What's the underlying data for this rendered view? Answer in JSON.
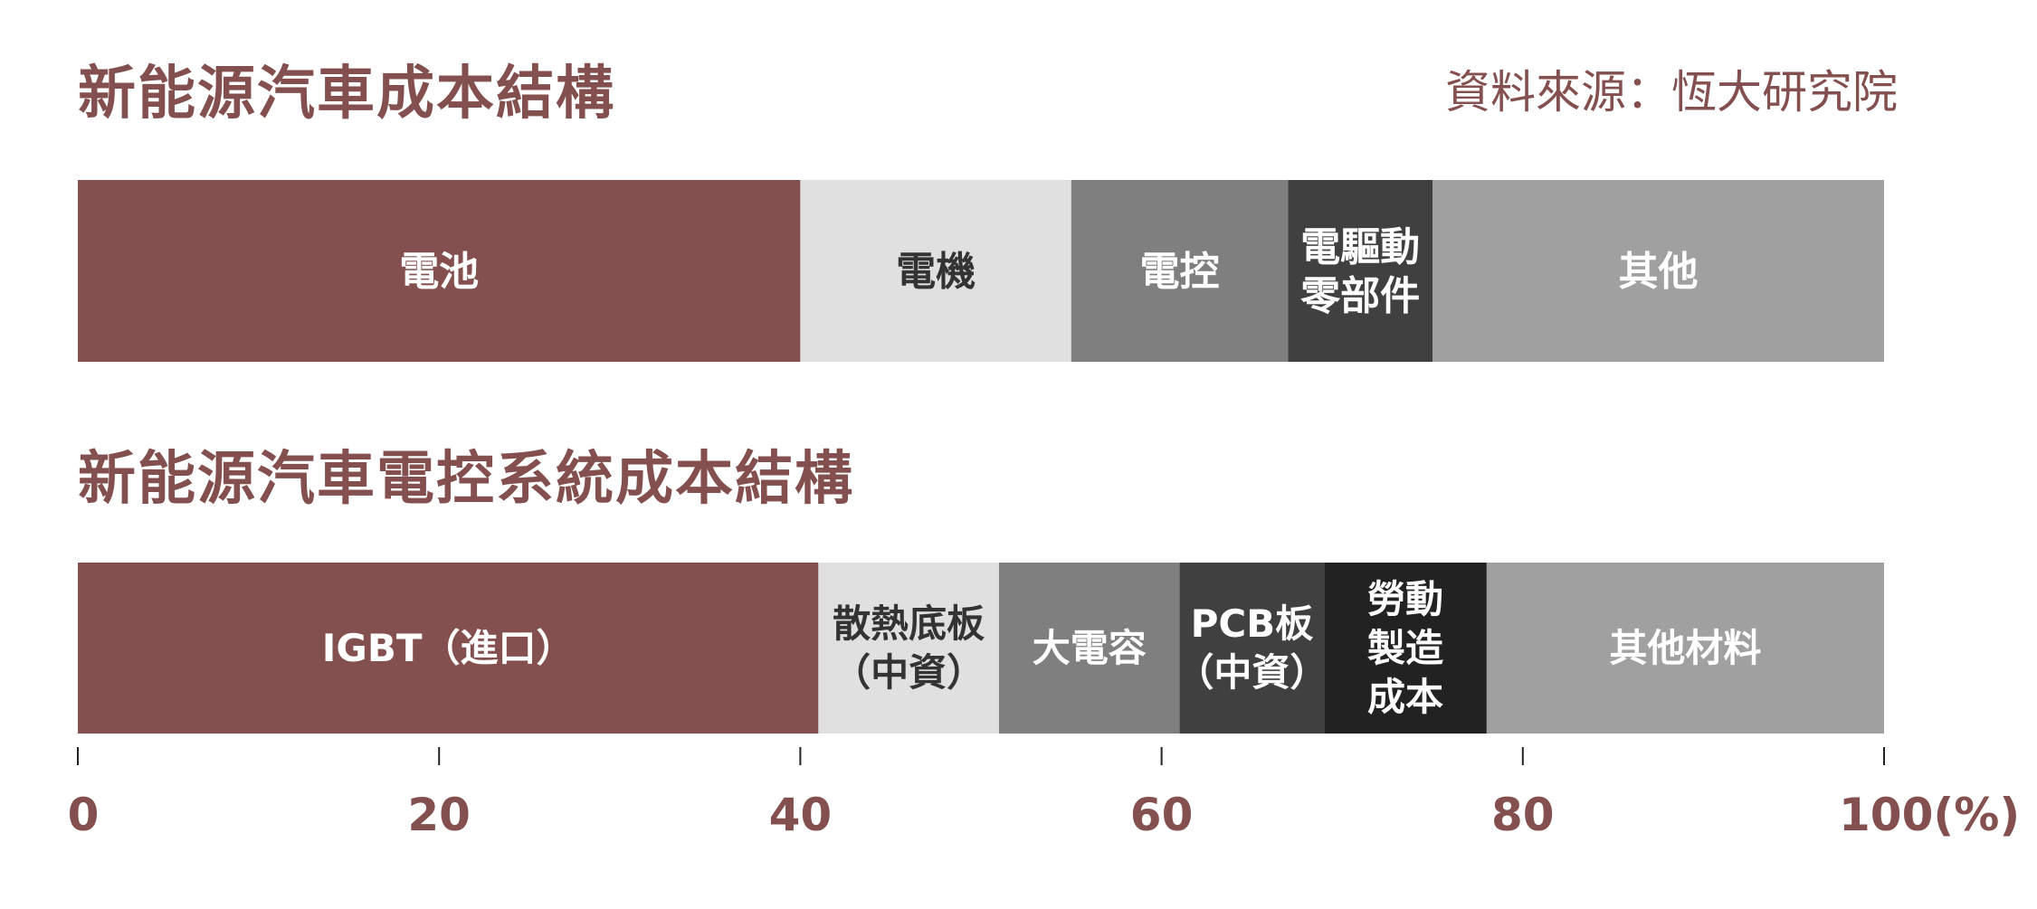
{
  "chart_data": [
    {
      "type": "bar",
      "orientation": "horizontal-stacked-100",
      "title": "新能源汽車成本結構",
      "source": "資料來源：恆大研究院",
      "segments": [
        {
          "label": "電池",
          "start": 0,
          "end": 40,
          "value": 40,
          "color": "#83504f",
          "text_color": "#ffffff"
        },
        {
          "label": "電機",
          "start": 40,
          "end": 55,
          "value": 15,
          "color": "#e0e0e0",
          "text_color": "#333333"
        },
        {
          "label": "電控",
          "start": 55,
          "end": 67,
          "value": 12,
          "color": "#7f7f7f",
          "text_color": "#ffffff"
        },
        {
          "label": "電驅動\n零部件",
          "start": 67,
          "end": 75,
          "value": 8,
          "color": "#404040",
          "text_color": "#ffffff"
        },
        {
          "label": "其他",
          "start": 75,
          "end": 100,
          "value": 25,
          "color": "#a0a0a0",
          "text_color": "#ffffff"
        }
      ]
    },
    {
      "type": "bar",
      "orientation": "horizontal-stacked-100",
      "title": "新能源汽車電控系統成本結構",
      "segments": [
        {
          "label": "IGBT（進口）",
          "start": 0,
          "end": 41,
          "value": 41,
          "color": "#83504f",
          "text_color": "#ffffff"
        },
        {
          "label": "散熱底板\n（中資）",
          "start": 41,
          "end": 51,
          "value": 10,
          "color": "#e0e0e0",
          "text_color": "#333333"
        },
        {
          "label": "大電容",
          "start": 51,
          "end": 61,
          "value": 10,
          "color": "#7f7f7f",
          "text_color": "#ffffff"
        },
        {
          "label": "PCB板\n（中資）",
          "start": 61,
          "end": 69,
          "value": 8,
          "color": "#404040",
          "text_color": "#ffffff"
        },
        {
          "label": "勞動\n製造\n成本",
          "start": 69,
          "end": 78,
          "value": 9,
          "color": "#222222",
          "text_color": "#ffffff"
        },
        {
          "label": "其他材料",
          "start": 78,
          "end": 100,
          "value": 22,
          "color": "#a0a0a0",
          "text_color": "#ffffff"
        }
      ]
    }
  ],
  "axis": {
    "xlim": [
      0,
      100
    ],
    "ticks": [
      {
        "value": 0,
        "label": "0"
      },
      {
        "value": 20,
        "label": "20"
      },
      {
        "value": 40,
        "label": "40"
      },
      {
        "value": 60,
        "label": "60"
      },
      {
        "value": 80,
        "label": "80"
      },
      {
        "value": 100,
        "label": "100(%)"
      }
    ],
    "color": "#83504f"
  }
}
